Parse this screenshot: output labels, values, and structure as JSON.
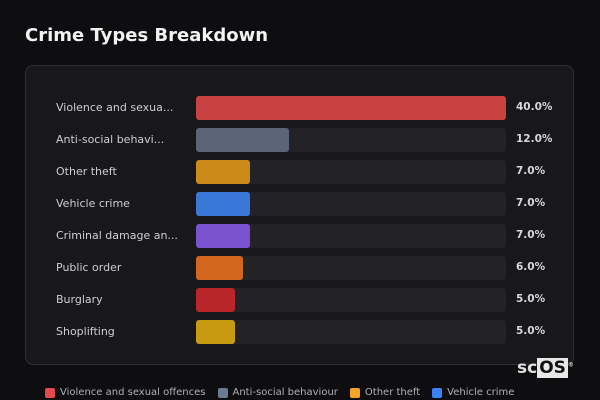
{
  "title": "Crime Types Breakdown",
  "chart_data": {
    "type": "bar",
    "orientation": "horizontal",
    "title": "Crime Types Breakdown",
    "categories": [
      "Violence and sexua...",
      "Anti-social behavi...",
      "Other theft",
      "Vehicle crime",
      "Criminal damage an...",
      "Public order",
      "Burglary",
      "Shoplifting"
    ],
    "values": [
      40.0,
      12.0,
      7.0,
      7.0,
      7.0,
      6.0,
      5.0,
      5.0
    ],
    "value_labels": [
      "40.0%",
      "12.0%",
      "7.0%",
      "7.0%",
      "7.0%",
      "6.0%",
      "5.0%",
      "5.0%"
    ],
    "colors": [
      "#c94040",
      "#5a6577",
      "#cc8a18",
      "#3a78d8",
      "#7a52d0",
      "#d2661c",
      "#b8262a",
      "#c89a12"
    ],
    "xlim": [
      0,
      40
    ],
    "unit": "%",
    "legend": {
      "placement": "bottom",
      "entries": [
        {
          "label": "Violence and sexual offences",
          "color": "#e5484d"
        },
        {
          "label": "Anti-social behaviour",
          "color": "#6b7a90"
        },
        {
          "label": "Other theft",
          "color": "#f5a524"
        },
        {
          "label": "Vehicle crime",
          "color": "#3b82f6"
        }
      ]
    }
  },
  "logo": {
    "text_sc": "sc",
    "text_os": "OS",
    "mark": "®"
  }
}
